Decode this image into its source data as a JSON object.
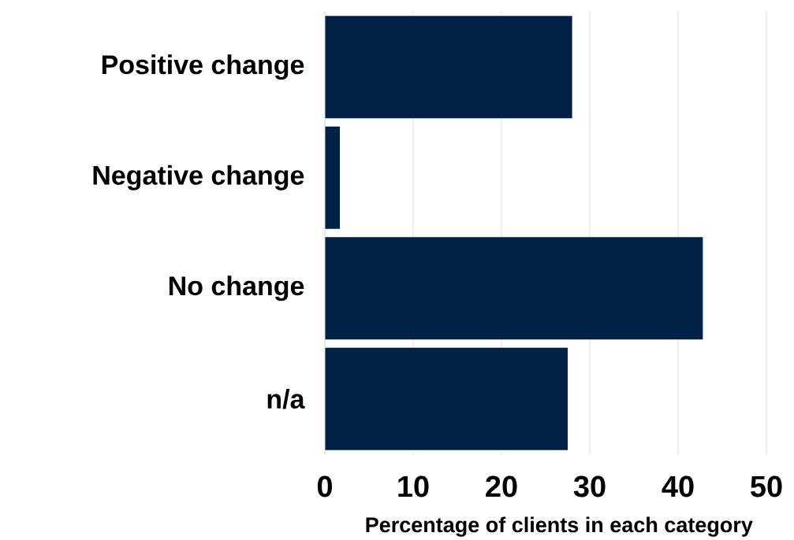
{
  "chart_data": {
    "type": "bar",
    "orientation": "horizontal",
    "xlabel": "Percentage of clients in each category",
    "categories": [
      "Positive change",
      "Negative change",
      "No change",
      "n/a"
    ],
    "values": [
      28.0,
      1.7,
      42.8,
      27.5
    ],
    "color": "#002147",
    "xlim": [
      0,
      50
    ],
    "xticks": [
      0,
      10,
      20,
      30,
      40,
      50
    ],
    "grid": "x"
  }
}
